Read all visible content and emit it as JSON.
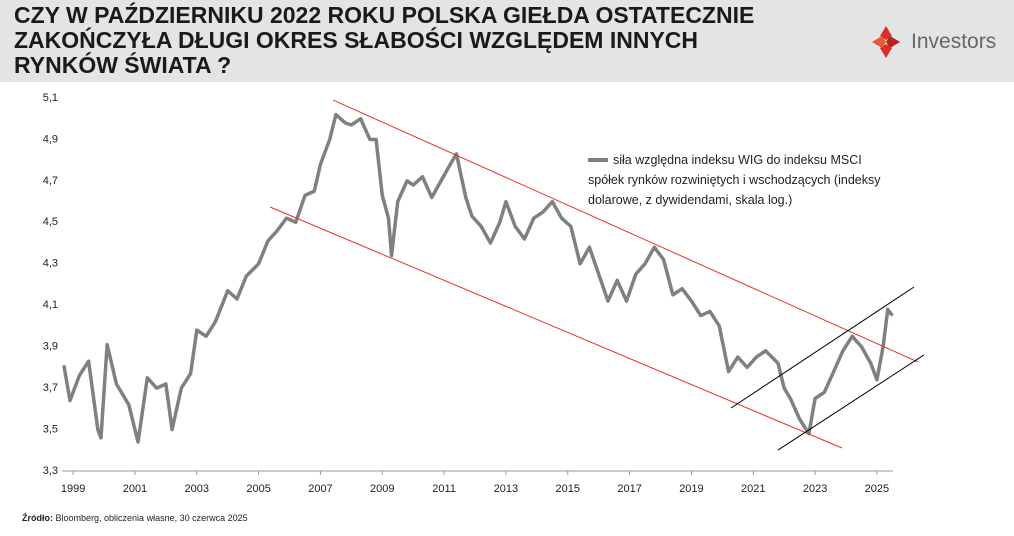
{
  "chart_data": {
    "type": "line",
    "title_lines": [
      "CZY W PAŹDZIERNIKU 2022 ROKU POLSKA GIEŁDA OSTATECZNIE",
      "ZAKOŃCZYŁA DŁUGI OKRES SŁABOŚCI WZGLĘDEM INNYCH",
      "RYNKÓW ŚWIATA ?"
    ],
    "logo": "Investors",
    "series": [
      {
        "name": "siła względna indeksu WIG do indeksu MSCI spółek rynków rozwiniętych i wschodzących (indeksy dolarowe, z dywidendami, skala log.)",
        "color": "#808080",
        "x": [
          1998.7,
          1998.9,
          1999.2,
          1999.5,
          1999.8,
          1999.9,
          2000.1,
          2000.4,
          2000.8,
          2001.1,
          2001.4,
          2001.7,
          2002.0,
          2002.2,
          2002.5,
          2002.8,
          2003.0,
          2003.3,
          2003.6,
          2004.0,
          2004.3,
          2004.6,
          2005.0,
          2005.3,
          2005.6,
          2005.9,
          2006.2,
          2006.5,
          2006.8,
          2007.0,
          2007.3,
          2007.5,
          2007.8,
          2008.0,
          2008.3,
          2008.6,
          2008.8,
          2009.0,
          2009.2,
          2009.3,
          2009.5,
          2009.8,
          2010.0,
          2010.3,
          2010.6,
          2010.9,
          2011.2,
          2011.4,
          2011.7,
          2011.9,
          2012.2,
          2012.5,
          2012.8,
          2013.0,
          2013.3,
          2013.6,
          2013.9,
          2014.2,
          2014.5,
          2014.8,
          2015.1,
          2015.4,
          2015.7,
          2016.0,
          2016.3,
          2016.6,
          2016.9,
          2017.2,
          2017.5,
          2017.8,
          2018.1,
          2018.4,
          2018.7,
          2019.0,
          2019.3,
          2019.6,
          2019.9,
          2020.2,
          2020.5,
          2020.8,
          2021.1,
          2021.4,
          2021.8,
          2022.0,
          2022.2,
          2022.5,
          2022.8,
          2023.0,
          2023.3,
          2023.6,
          2023.9,
          2024.2,
          2024.5,
          2024.8,
          2025.0,
          2025.2,
          2025.35,
          2025.5
        ],
        "values": [
          3.81,
          3.64,
          3.76,
          3.83,
          3.5,
          3.46,
          3.91,
          3.72,
          3.62,
          3.44,
          3.75,
          3.7,
          3.72,
          3.5,
          3.7,
          3.77,
          3.98,
          3.95,
          4.02,
          4.17,
          4.13,
          4.24,
          4.3,
          4.41,
          4.46,
          4.52,
          4.5,
          4.63,
          4.65,
          4.78,
          4.9,
          5.02,
          4.98,
          4.97,
          5.0,
          4.9,
          4.9,
          4.63,
          4.52,
          4.34,
          4.6,
          4.7,
          4.68,
          4.72,
          4.62,
          4.7,
          4.78,
          4.83,
          4.62,
          4.53,
          4.48,
          4.4,
          4.5,
          4.6,
          4.48,
          4.42,
          4.52,
          4.55,
          4.6,
          4.52,
          4.48,
          4.3,
          4.38,
          4.25,
          4.12,
          4.22,
          4.12,
          4.25,
          4.3,
          4.38,
          4.32,
          4.15,
          4.18,
          4.12,
          4.05,
          4.07,
          4.0,
          3.78,
          3.85,
          3.8,
          3.85,
          3.88,
          3.82,
          3.7,
          3.65,
          3.55,
          3.48,
          3.65,
          3.68,
          3.78,
          3.88,
          3.95,
          3.9,
          3.82,
          3.74,
          3.9,
          4.08,
          4.05
        ]
      }
    ],
    "trend_lines": [
      {
        "color": "#e8332a",
        "x": [
          2007.41,
          2026.33
        ],
        "y": [
          5.09,
          3.826
        ]
      },
      {
        "color": "#e8332a",
        "x": [
          2005.37,
          2023.87
        ],
        "y": [
          4.574,
          3.411
        ]
      },
      {
        "color": "#000000",
        "x": [
          2020.28,
          2026.2
        ],
        "y": [
          3.604,
          4.188
        ]
      },
      {
        "color": "#000000",
        "x": [
          2021.8,
          2026.52
        ],
        "y": [
          3.401,
          3.86
        ]
      }
    ],
    "xlim": [
      1998.64,
      2025.52
    ],
    "xticks": [
      1999,
      2001,
      2003,
      2005,
      2007,
      2009,
      2011,
      2013,
      2015,
      2017,
      2019,
      2021,
      2023,
      2025
    ],
    "ylim": [
      3.3,
      5.1
    ],
    "yticks": [
      {
        "value": 3.3,
        "label": "3,3"
      },
      {
        "value": 3.5,
        "label": "3,5"
      },
      {
        "value": 3.7,
        "label": "3,7"
      },
      {
        "value": 3.9,
        "label": "3,9"
      },
      {
        "value": 4.1,
        "label": "4,1"
      },
      {
        "value": 4.3,
        "label": "4,3"
      },
      {
        "value": 4.5,
        "label": "4,5"
      },
      {
        "value": 4.7,
        "label": "4,7"
      },
      {
        "value": 4.9,
        "label": "4,9"
      },
      {
        "value": 5.1,
        "label": "5,1"
      }
    ],
    "grid": false,
    "source_label": "Źródło:",
    "source": "Bloomberg, obliczenia własne, 30 czerwca 2025"
  }
}
